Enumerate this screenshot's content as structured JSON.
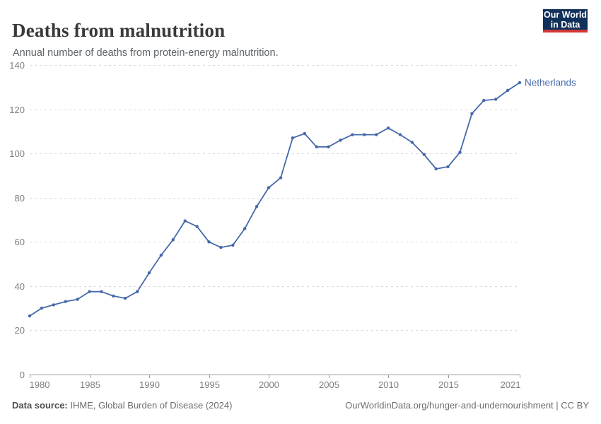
{
  "header": {
    "title": "Deaths from malnutrition",
    "subtitle": "Annual number of deaths from protein-energy malnutrition.",
    "logo": {
      "line1": "Our World",
      "line2": "in Data",
      "bg_color": "#12315a",
      "accent_color": "#d13737"
    }
  },
  "chart_data": {
    "type": "line",
    "title": "Deaths from malnutrition",
    "xlabel": "",
    "ylabel": "",
    "x_range": [
      1980,
      2021
    ],
    "y_range": [
      0,
      140
    ],
    "yticks": [
      0,
      20,
      40,
      60,
      80,
      100,
      120,
      140
    ],
    "xticks": [
      1980,
      1985,
      1990,
      1995,
      2000,
      2005,
      2010,
      2015,
      2021
    ],
    "grid": "horizontal-dashed",
    "legend_position": "right-of-last-point",
    "x": [
      1980,
      1981,
      1982,
      1983,
      1984,
      1985,
      1986,
      1987,
      1988,
      1989,
      1990,
      1991,
      1992,
      1993,
      1994,
      1995,
      1996,
      1997,
      1998,
      1999,
      2000,
      2001,
      2002,
      2003,
      2004,
      2005,
      2006,
      2007,
      2008,
      2009,
      2010,
      2011,
      2012,
      2013,
      2014,
      2015,
      2016,
      2017,
      2018,
      2019,
      2020,
      2021
    ],
    "series": [
      {
        "name": "Netherlands",
        "color": "#4569a9",
        "values": [
          26.5,
          30,
          31.5,
          33,
          34,
          37.5,
          37.5,
          35.5,
          34.5,
          37.5,
          46,
          54,
          61,
          69.5,
          67,
          60,
          57.5,
          58.5,
          66,
          76,
          84.5,
          89,
          107,
          109,
          103,
          103,
          106,
          108.5,
          108.5,
          108.5,
          111.5,
          108.5,
          105,
          99.5,
          93,
          94,
          100.5,
          118,
          124,
          124.5,
          128.5,
          132
        ]
      }
    ]
  },
  "footer": {
    "data_source_label": "Data source:",
    "data_source_value": " IHME, Global Burden of Disease (2024)",
    "credit": "OurWorldinData.org/hunger-and-undernourishment | CC BY"
  }
}
